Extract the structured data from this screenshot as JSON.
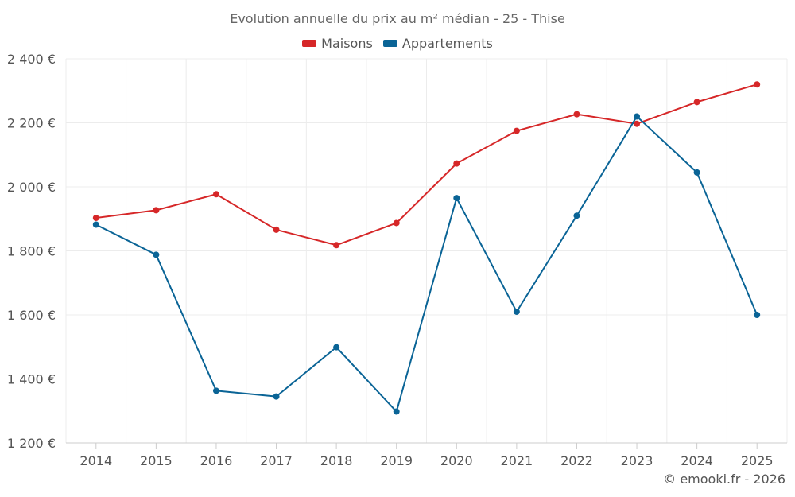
{
  "chart_data": {
    "type": "line",
    "title": "Evolution annuelle du prix au m² médian - 25 - Thise",
    "categories": [
      "2014",
      "2015",
      "2016",
      "2017",
      "2018",
      "2019",
      "2020",
      "2021",
      "2022",
      "2023",
      "2024",
      "2025"
    ],
    "series": [
      {
        "name": "Maisons",
        "color": "#d62728",
        "values": [
          1903,
          1927,
          1977,
          1866,
          1818,
          1887,
          2073,
          2175,
          2227,
          2197,
          2265,
          2320
        ]
      },
      {
        "name": "Appartements",
        "color": "#0a6496",
        "values": [
          1882,
          1788,
          1363,
          1345,
          1499,
          1298,
          1965,
          1610,
          1910,
          2220,
          2045,
          1600
        ]
      }
    ],
    "ylim": [
      1200,
      2400
    ],
    "yticks": [
      1200,
      1400,
      1600,
      1800,
      2000,
      2200,
      2400
    ],
    "ytick_labels": [
      "1 200 €",
      "1 400 €",
      "1 600 €",
      "1 800 €",
      "2 000 €",
      "2 200 €",
      "2 400 €"
    ],
    "grid": true,
    "legend_position": "top-center"
  },
  "footer": {
    "copyright": "© emooki.fr - 2026"
  }
}
